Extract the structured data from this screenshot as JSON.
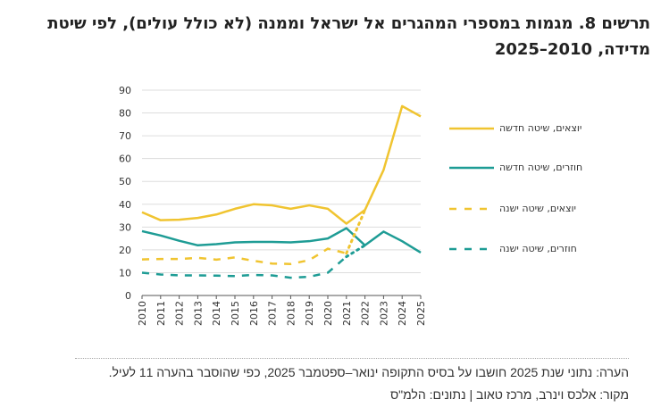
{
  "chart_data": {
    "type": "line",
    "title": "תרשים 8. מגמות במספרי המהגרים אל ישראל וממנה (לא כולל עולים), לפי שיטת מדידה, 2010–2025",
    "xlabel": "",
    "ylabel": "",
    "ylim": [
      0,
      90
    ],
    "yticks": [
      0,
      10,
      20,
      30,
      40,
      50,
      60,
      70,
      80,
      90
    ],
    "x": [
      2010,
      2011,
      2012,
      2013,
      2014,
      2015,
      2016,
      2017,
      2018,
      2019,
      2020,
      2021,
      2022,
      2023,
      2024,
      2025
    ],
    "grid": "horizontal",
    "legend_placement": "right",
    "series": [
      {
        "name": "יוצאים, שיטה חדשה",
        "color": "#F0C430",
        "style": "solid",
        "values": [
          36.5,
          33,
          33.2,
          34,
          35.5,
          38,
          40,
          39.5,
          38,
          39.5,
          38,
          31.5,
          37.5,
          55,
          83,
          78.5
        ]
      },
      {
        "name": "חוזרים, שיטה חדשה",
        "color": "#1E9C95",
        "style": "solid",
        "values": [
          28.2,
          26.3,
          24,
          22,
          22.5,
          23.3,
          23.5,
          23.5,
          23.3,
          23.8,
          25,
          29.5,
          22,
          28,
          23.8,
          18.8
        ]
      },
      {
        "name": "יוצאים, שיטה ישנה",
        "color": "#F0C430",
        "style": "dashed",
        "values": [
          15.8,
          16,
          16,
          16.5,
          15.7,
          16.7,
          15.2,
          14,
          13.8,
          15.5,
          20.5,
          18.5,
          37.5,
          null,
          null,
          null
        ]
      },
      {
        "name": "חוזרים, שיטה ישנה",
        "color": "#1E9C95",
        "style": "dashed",
        "values": [
          10,
          9.2,
          8.8,
          8.8,
          8.7,
          8.5,
          9,
          8.8,
          7.8,
          8.2,
          10,
          17,
          22,
          null,
          null,
          null
        ]
      }
    ]
  },
  "footer": {
    "note": "הערה: נתוני שנת 2025 חושבו על בסיס התקופה ינואר–ספטמבר 2025, כפי שהוסבר בהערה 11 לעיל.",
    "source": "מקור: אלכס וינרב, מרכז טאוב | נתונים: הלמ\"ס"
  }
}
